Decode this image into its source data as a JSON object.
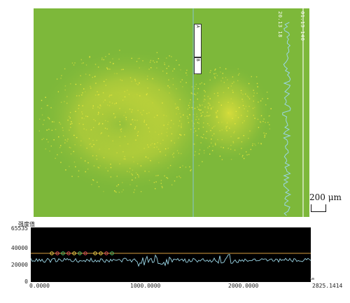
{
  "image": {
    "overlay_tag_1": "20.13  18",
    "overlay_tag_2": "01.13  140",
    "marker_1": "A",
    "marker_2": "B",
    "background_color": "#7db83a",
    "signal_color": "#e8e83a",
    "profile_line_color": "#9bd6e6"
  },
  "scalebar": {
    "label": "200 μm"
  },
  "profile": {
    "title": "强度值",
    "y_ticks": [
      "65535",
      "40000",
      "20000",
      "0"
    ],
    "x_ticks": [
      "0.0000",
      "1000.0000",
      "2000.0000",
      "2825.1414"
    ],
    "x_unit": "um",
    "reference_line_color": "#d8a040",
    "line_color": "#9bd6e6"
  }
}
